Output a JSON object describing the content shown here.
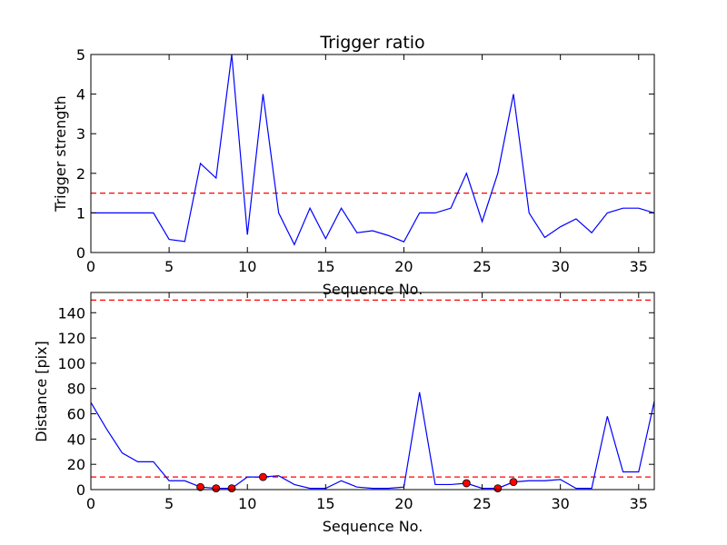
{
  "chart_data": [
    {
      "type": "line",
      "title": "Trigger ratio",
      "xlabel": "Sequence No.",
      "ylabel": "Trigger strength",
      "xlim": [
        0,
        36
      ],
      "ylim": [
        0,
        5
      ],
      "xticks": [
        0,
        5,
        10,
        15,
        20,
        25,
        30,
        35
      ],
      "yticks": [
        0,
        1,
        2,
        3,
        4,
        5
      ],
      "grid": false,
      "series": [
        {
          "color": "#0000ff",
          "x": [
            0,
            1,
            2,
            3,
            4,
            5,
            6,
            7,
            8,
            9,
            10,
            11,
            12,
            13,
            14,
            15,
            16,
            17,
            18,
            19,
            20,
            21,
            22,
            23,
            24,
            25,
            26,
            27,
            28,
            29,
            30,
            31,
            32,
            33,
            34,
            35,
            36
          ],
          "y": [
            1.0,
            1.0,
            1.0,
            1.0,
            1.0,
            0.33,
            0.28,
            2.25,
            1.88,
            5.0,
            0.45,
            4.0,
            1.0,
            0.2,
            1.12,
            0.35,
            1.12,
            0.5,
            0.55,
            0.43,
            0.27,
            1.0,
            1.0,
            1.12,
            2.0,
            0.78,
            2.0,
            4.0,
            1.0,
            0.38,
            0.65,
            0.85,
            0.5,
            1.0,
            1.12,
            1.12,
            1.0
          ]
        }
      ],
      "threshold": {
        "y": 1.5,
        "color": "#ff0000",
        "style": "dashed"
      }
    },
    {
      "type": "line",
      "title": "",
      "xlabel": "Sequence No.",
      "ylabel": "Distance [pix]",
      "xlim": [
        0,
        36
      ],
      "ylim": [
        0,
        156
      ],
      "xticks": [
        0,
        5,
        10,
        15,
        20,
        25,
        30,
        35
      ],
      "yticks": [
        0,
        20,
        40,
        60,
        80,
        100,
        120,
        140
      ],
      "grid": false,
      "series": [
        {
          "color": "#0000ff",
          "x": [
            0,
            1,
            2,
            3,
            4,
            5,
            6,
            7,
            8,
            9,
            10,
            11,
            12,
            13,
            14,
            15,
            16,
            17,
            18,
            19,
            20,
            21,
            22,
            23,
            24,
            25,
            26,
            27,
            28,
            29,
            30,
            31,
            32,
            33,
            34,
            35,
            36
          ],
          "y": [
            69,
            48,
            29,
            22,
            22,
            7,
            7,
            2,
            1,
            1,
            10,
            10,
            11,
            4,
            1,
            1,
            7,
            2,
            1,
            1,
            2,
            77,
            4,
            4,
            5,
            1,
            1,
            6,
            7,
            7,
            8,
            1,
            1,
            58,
            14,
            14,
            70
          ]
        }
      ],
      "markers": {
        "color": "#ff0000",
        "points": [
          {
            "x": 7,
            "y": 2
          },
          {
            "x": 8,
            "y": 1
          },
          {
            "x": 9,
            "y": 1
          },
          {
            "x": 11,
            "y": 10
          },
          {
            "x": 24,
            "y": 5
          },
          {
            "x": 26,
            "y": 1
          },
          {
            "x": 27,
            "y": 6
          }
        ]
      },
      "thresholds": [
        {
          "y": 150,
          "color": "#ff0000",
          "style": "dashed"
        },
        {
          "y": 10,
          "color": "#ff0000",
          "style": "dashed"
        }
      ]
    }
  ]
}
